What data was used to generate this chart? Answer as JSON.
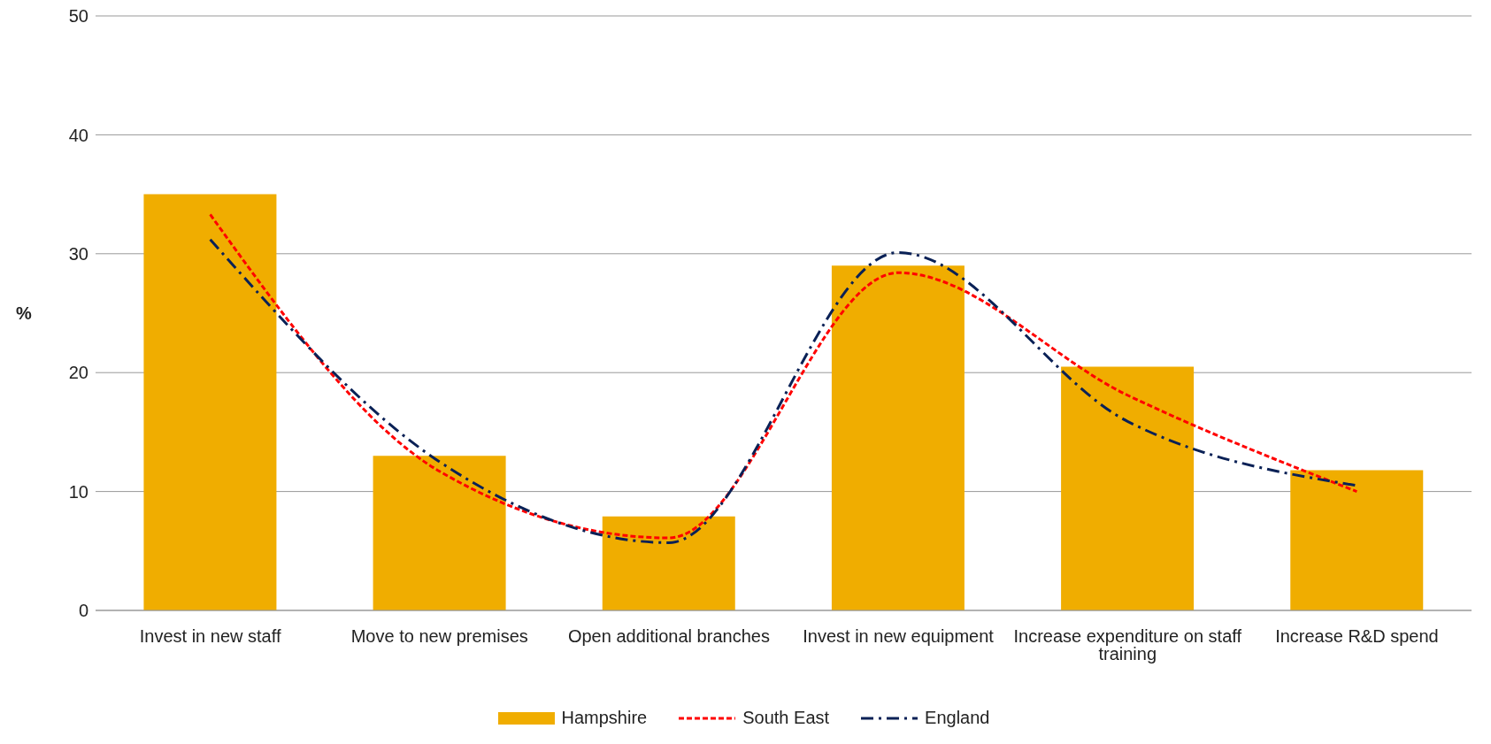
{
  "chart_data": {
    "type": "bar",
    "ylabel": "%",
    "categories": [
      "Invest in new staff",
      "Move to new premises",
      "Open additional branches",
      "Invest in new equipment",
      "Increase expenditure on staff training",
      "Increase R&D spend"
    ],
    "series": [
      {
        "name": "Hampshire",
        "color": "#f0ad00",
        "values": [
          35,
          13,
          7.9,
          29,
          20.5,
          11.8
        ]
      },
      {
        "name": "South East",
        "type": "line",
        "color": "#ff0000",
        "line_style": "dashed",
        "values": [
          33.3,
          11.7,
          6.1,
          28.4,
          18.1,
          10
        ]
      },
      {
        "name": "England",
        "type": "line",
        "color": "#0a2156",
        "line_style": "dashdot",
        "values": [
          31.2,
          12.5,
          5.7,
          30.1,
          15.9,
          10.5
        ]
      }
    ],
    "ylim": [
      0,
      50
    ],
    "yticks": [
      0,
      10,
      20,
      30,
      40,
      50
    ],
    "grid": "y",
    "legend": "bottom",
    "marker": "none"
  }
}
